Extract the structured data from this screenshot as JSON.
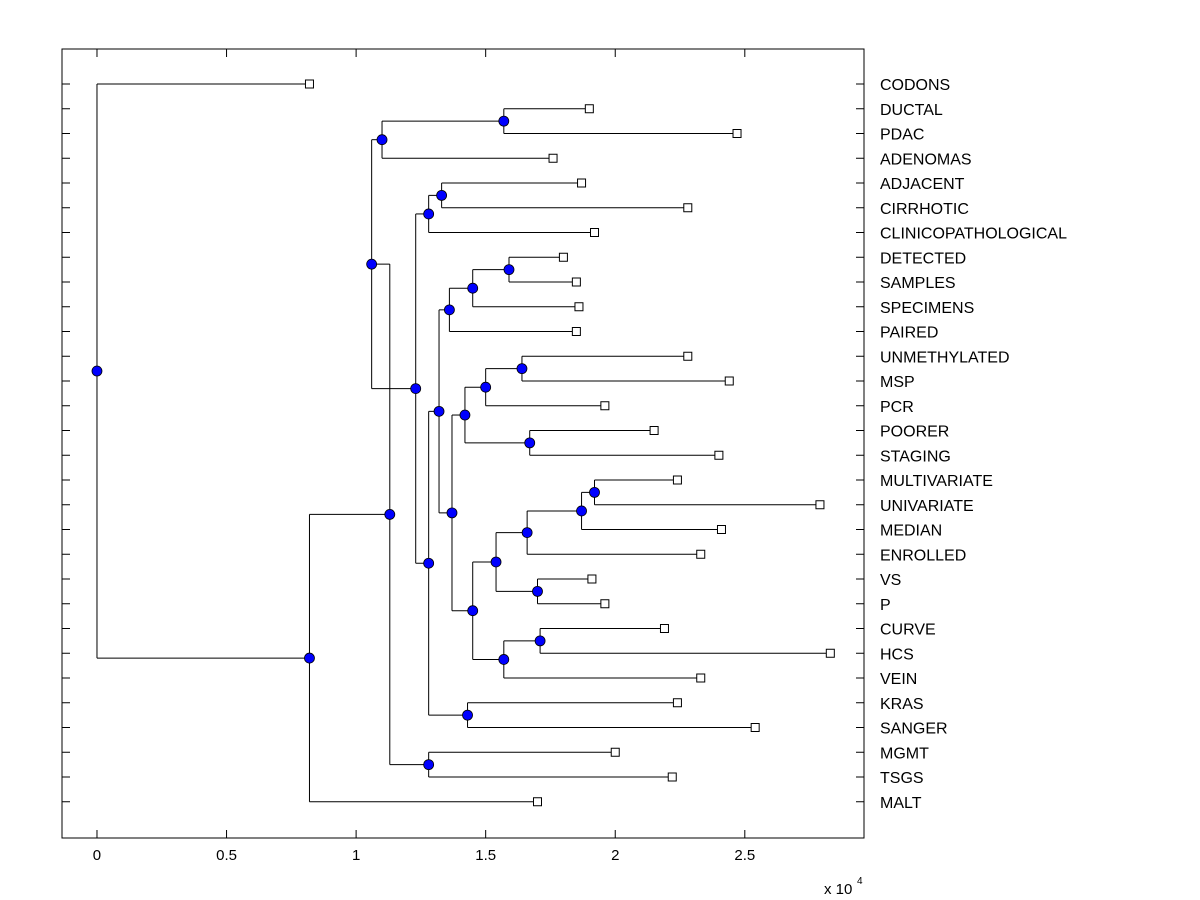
{
  "chart_data": {
    "type": "dendrogram",
    "xlim": [
      -0.135,
      2.96
    ],
    "x_multiplier_label": "x 10",
    "x_multiplier_exponent": "4",
    "xticks": [
      0,
      0.5,
      1,
      1.5,
      2,
      2.5
    ],
    "xtick_labels": [
      "0",
      "0.5",
      "1",
      "1.5",
      "2",
      "2.5"
    ],
    "grid": false,
    "leaves": [
      {
        "label": "CODONS",
        "x": 0.82
      },
      {
        "label": "DUCTAL",
        "x": 1.9
      },
      {
        "label": "PDAC",
        "x": 2.47
      },
      {
        "label": "ADENOMAS",
        "x": 1.76
      },
      {
        "label": "ADJACENT",
        "x": 1.87
      },
      {
        "label": "CIRRHOTIC",
        "x": 2.28
      },
      {
        "label": "CLINICOPATHOLOGICAL",
        "x": 1.92
      },
      {
        "label": "DETECTED",
        "x": 1.8
      },
      {
        "label": "SAMPLES",
        "x": 1.85
      },
      {
        "label": "SPECIMENS",
        "x": 1.86
      },
      {
        "label": "PAIRED",
        "x": 1.85
      },
      {
        "label": "UNMETHYLATED",
        "x": 2.28
      },
      {
        "label": "MSP",
        "x": 2.44
      },
      {
        "label": "PCR",
        "x": 1.96
      },
      {
        "label": "POORER",
        "x": 2.15
      },
      {
        "label": "STAGING",
        "x": 2.4
      },
      {
        "label": "MULTIVARIATE",
        "x": 2.24
      },
      {
        "label": "UNIVARIATE",
        "x": 2.79
      },
      {
        "label": "MEDIAN",
        "x": 2.41
      },
      {
        "label": "ENROLLED",
        "x": 2.33
      },
      {
        "label": "VS",
        "x": 1.91
      },
      {
        "label": "P",
        "x": 1.96
      },
      {
        "label": "CURVE",
        "x": 2.19
      },
      {
        "label": "HCS",
        "x": 2.83
      },
      {
        "label": "VEIN",
        "x": 2.33
      },
      {
        "label": "KRAS",
        "x": 2.24
      },
      {
        "label": "SANGER",
        "x": 2.54
      },
      {
        "label": "MGMT",
        "x": 2.0
      },
      {
        "label": "TSGS",
        "x": 2.22
      },
      {
        "label": "MALT",
        "x": 1.7
      }
    ],
    "nodes": [
      {
        "id": "n_ductal_pdac",
        "x": 1.57,
        "children": [
          "L1",
          "L2"
        ]
      },
      {
        "id": "n_ductal_adenomas",
        "x": 1.1,
        "children": [
          "n_ductal_pdac",
          "L3"
        ]
      },
      {
        "id": "n_adjacent_cirrhotic",
        "x": 1.33,
        "children": [
          "L4",
          "L5"
        ]
      },
      {
        "id": "n_adjacent_clinico",
        "x": 1.28,
        "children": [
          "n_adjacent_cirrhotic",
          "L6"
        ]
      },
      {
        "id": "n_detected_samples",
        "x": 1.59,
        "children": [
          "L7",
          "L8"
        ]
      },
      {
        "id": "n_detected_specimens",
        "x": 1.45,
        "children": [
          "n_detected_samples",
          "L9"
        ]
      },
      {
        "id": "n_detected_paired",
        "x": 1.36,
        "children": [
          "n_detected_specimens",
          "L10"
        ]
      },
      {
        "id": "n_unmeth_msp",
        "x": 1.64,
        "children": [
          "L11",
          "L12"
        ]
      },
      {
        "id": "n_unmeth_pcr",
        "x": 1.5,
        "children": [
          "n_unmeth_msp",
          "L13"
        ]
      },
      {
        "id": "n_poorer_staging",
        "x": 1.67,
        "children": [
          "L14",
          "L15"
        ]
      },
      {
        "id": "n_unmeth_poorer",
        "x": 1.42,
        "children": [
          "n_unmeth_pcr",
          "n_poorer_staging"
        ]
      },
      {
        "id": "n_multi_uni",
        "x": 1.92,
        "children": [
          "L16",
          "L17"
        ]
      },
      {
        "id": "n_multi_median",
        "x": 1.87,
        "children": [
          "n_multi_uni",
          "L18"
        ]
      },
      {
        "id": "n_multi_enrolled",
        "x": 1.66,
        "children": [
          "n_multi_median",
          "L19"
        ]
      },
      {
        "id": "n_vs_p",
        "x": 1.7,
        "children": [
          "L20",
          "L21"
        ]
      },
      {
        "id": "n_multi_vs",
        "x": 1.54,
        "children": [
          "n_multi_enrolled",
          "n_vs_p"
        ]
      },
      {
        "id": "n_curve_hcs",
        "x": 1.71,
        "children": [
          "L22",
          "L23"
        ]
      },
      {
        "id": "n_curve_vein",
        "x": 1.57,
        "children": [
          "n_curve_hcs",
          "L24"
        ]
      },
      {
        "id": "n_multi_curve",
        "x": 1.45,
        "children": [
          "n_multi_vs",
          "n_curve_vein"
        ]
      },
      {
        "id": "n_unmeth_multi",
        "x": 1.37,
        "children": [
          "n_unmeth_poorer",
          "n_multi_curve"
        ]
      },
      {
        "id": "n_detected_unmeth",
        "x": 1.32,
        "children": [
          "n_detected_paired",
          "n_unmeth_multi"
        ]
      },
      {
        "id": "n_kras_sanger",
        "x": 1.43,
        "children": [
          "L25",
          "L26"
        ]
      },
      {
        "id": "n_detected_kras",
        "x": 1.28,
        "children": [
          "n_detected_unmeth",
          "n_kras_sanger"
        ]
      },
      {
        "id": "n_adjacent_detected",
        "x": 1.23,
        "children": [
          "n_adjacent_clinico",
          "n_detected_kras"
        ]
      },
      {
        "id": "n_ductal_adjacent",
        "x": 1.06,
        "children": [
          "n_ductal_adenomas",
          "n_adjacent_detected"
        ]
      },
      {
        "id": "n_mgmt_tsgs",
        "x": 1.28,
        "children": [
          "L27",
          "L28"
        ]
      },
      {
        "id": "n_ductal_mgmt",
        "x": 1.13,
        "children": [
          "n_ductal_adjacent",
          "n_mgmt_tsgs"
        ]
      },
      {
        "id": "n_ductal_malt",
        "x": 0.82,
        "children": [
          "n_ductal_mgmt",
          "L29"
        ]
      },
      {
        "id": "n_root",
        "x": 0.0,
        "children": [
          "L0",
          "n_ductal_malt"
        ]
      }
    ],
    "colors": {
      "internal_node": "#0000ff",
      "leaf_node": "#ffffff",
      "lines": "#000000",
      "background": "#ffffff"
    }
  }
}
